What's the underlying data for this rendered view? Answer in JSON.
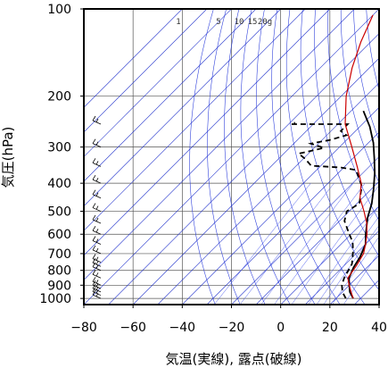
{
  "chart_data": {
    "type": "line",
    "title": "",
    "xlabel": "気温(実線), 露点(破線)",
    "ylabel": "気圧(hPa)",
    "xlim": [
      -80,
      40
    ],
    "ylim": [
      1050,
      100
    ],
    "y_scale": "log",
    "x_ticks": [
      "−80",
      "−60",
      "−40",
      "−20",
      "0",
      "20",
      "40"
    ],
    "x_tick_values": [
      -80,
      -60,
      -40,
      -20,
      0,
      20,
      40
    ],
    "y_ticks": [
      "100",
      "200",
      "300",
      "400",
      "500",
      "600",
      "700",
      "800",
      "900",
      "1000"
    ],
    "y_tick_values": [
      100,
      200,
      300,
      400,
      500,
      600,
      700,
      800,
      900,
      1000
    ],
    "mixing_ratio_labels": [
      "1",
      "5",
      "10",
      "15",
      "20g"
    ],
    "grid": true,
    "series": [
      {
        "line_style": "solid",
        "color": "#000000",
        "points": [
          [
            27,
            1000
          ],
          [
            23,
            950
          ],
          [
            20,
            900
          ],
          [
            17,
            850
          ],
          [
            14.5,
            780
          ],
          [
            13,
            720
          ],
          [
            10,
            650
          ],
          [
            6,
            600
          ],
          [
            0,
            525
          ],
          [
            -4,
            470
          ],
          [
            -9,
            420
          ],
          [
            -15,
            370
          ],
          [
            -21,
            330
          ],
          [
            -28,
            290
          ],
          [
            -36,
            255
          ],
          [
            -45,
            225
          ]
        ]
      },
      {
        "line_style": "dashed",
        "color": "#000000",
        "points": [
          [
            24,
            1000
          ],
          [
            20,
            950
          ],
          [
            17,
            900
          ],
          [
            15,
            850
          ],
          [
            12.5,
            760
          ],
          [
            8,
            690
          ],
          [
            4,
            640
          ],
          [
            -3,
            580
          ],
          [
            -8,
            540
          ],
          [
            -11,
            500
          ],
          [
            -9,
            470
          ],
          [
            -13,
            430
          ],
          [
            -15,
            410
          ],
          [
            -24,
            360
          ],
          [
            -31,
            353
          ],
          [
            -44,
            348
          ],
          [
            -49,
            330
          ],
          [
            -54,
            316
          ],
          [
            -46,
            302
          ],
          [
            -53,
            292
          ],
          [
            -51,
            289
          ],
          [
            -47,
            284
          ],
          [
            -42,
            273
          ],
          [
            -46,
            264
          ],
          [
            -46,
            250
          ],
          [
            -69,
            250
          ],
          [
            -68,
            247
          ]
        ]
      },
      {
        "line_style": "solid",
        "color": "#cc0000",
        "points": [
          [
            27,
            1000
          ],
          [
            23.5,
            950
          ],
          [
            20,
            900
          ],
          [
            16.5,
            850
          ],
          [
            15,
            770
          ],
          [
            13,
            700
          ],
          [
            10,
            650
          ],
          [
            6.5,
            600
          ],
          [
            2,
            550
          ],
          [
            -4,
            500
          ],
          [
            -11,
            450
          ],
          [
            -16.5,
            400
          ],
          [
            -25,
            350
          ],
          [
            -35,
            300
          ],
          [
            -47,
            250
          ],
          [
            -58,
            200
          ],
          [
            -67,
            160
          ],
          [
            -74,
            130
          ],
          [
            -80,
            105
          ]
        ]
      }
    ],
    "wind_barb_levels": [
      1000,
      975,
      950,
      925,
      900,
      850,
      800,
      775,
      750,
      700,
      650,
      600,
      550,
      500,
      450,
      400,
      350,
      300,
      250
    ]
  }
}
